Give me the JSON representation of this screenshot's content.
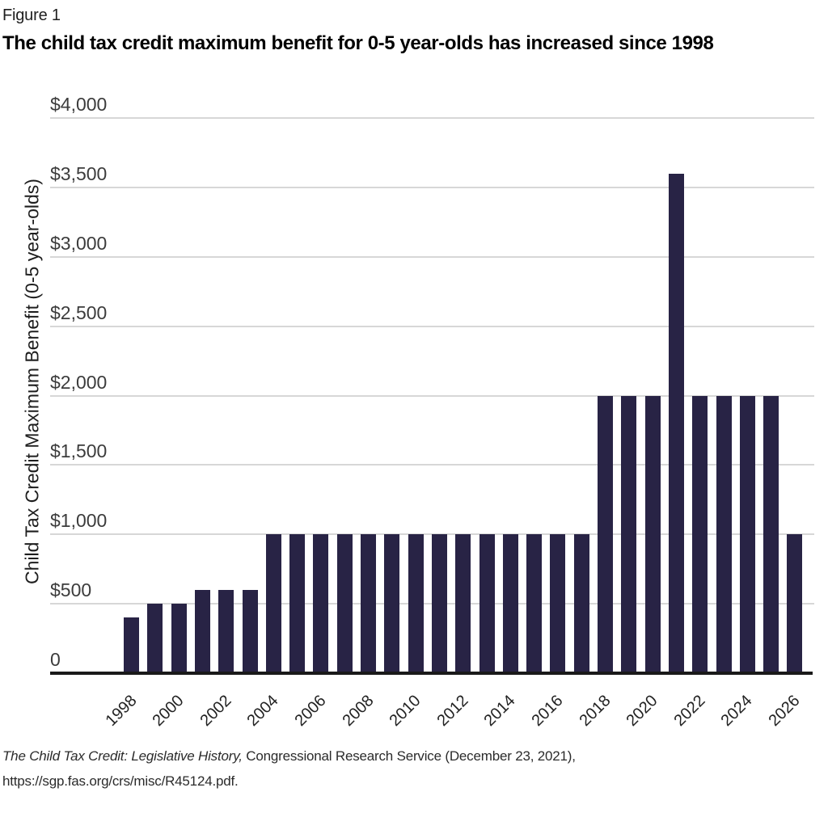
{
  "figure_label": "Figure 1",
  "title": "The child tax credit maximum benefit for 0-5 year-olds has increased since 1998",
  "source": {
    "italic": "The Child Tax Credit: Legislative History,",
    "regular": " Congressional Research Service (December 23, 2021),",
    "line2": "https://sgp.fas.org/crs/misc/R45124.pdf."
  },
  "chart_data": {
    "type": "bar",
    "title": "The child tax credit maximum benefit for 0-5 year-olds has increased since 1998",
    "xlabel": "",
    "ylabel": "Child Tax Credit Maximum Benefit (0-5 year-olds)",
    "categories": [
      "1998",
      "1999",
      "2000",
      "2001",
      "2002",
      "2003",
      "2004",
      "2005",
      "2006",
      "2007",
      "2008",
      "2009",
      "2010",
      "2011",
      "2012",
      "2013",
      "2014",
      "2015",
      "2016",
      "2017",
      "2018",
      "2019",
      "2020",
      "2021",
      "2022",
      "2023",
      "2024",
      "2025",
      "2026"
    ],
    "values": [
      400,
      500,
      500,
      600,
      600,
      600,
      1000,
      1000,
      1000,
      1000,
      1000,
      1000,
      1000,
      1000,
      1000,
      1000,
      1000,
      1000,
      1000,
      1000,
      2000,
      2000,
      2000,
      3600,
      2000,
      2000,
      2000,
      2000,
      1000
    ],
    "ylim": [
      0,
      4000
    ],
    "ytick_interval": 500,
    "ytick_labels": [
      "0",
      "$500",
      "$1,000",
      "$1,500",
      "$2,000",
      "$2,500",
      "$3,000",
      "$3,500",
      "$4,000"
    ],
    "xtick_labels": [
      "1998",
      "2000",
      "2002",
      "2004",
      "2006",
      "2008",
      "2010",
      "2012",
      "2014",
      "2016",
      "2018",
      "2020",
      "2022",
      "2024",
      "2026"
    ],
    "grid": true,
    "legend": false,
    "bar_color": "#282345",
    "gridline_color": "#d7d7d7",
    "axis_color": "#1a1a1a"
  }
}
